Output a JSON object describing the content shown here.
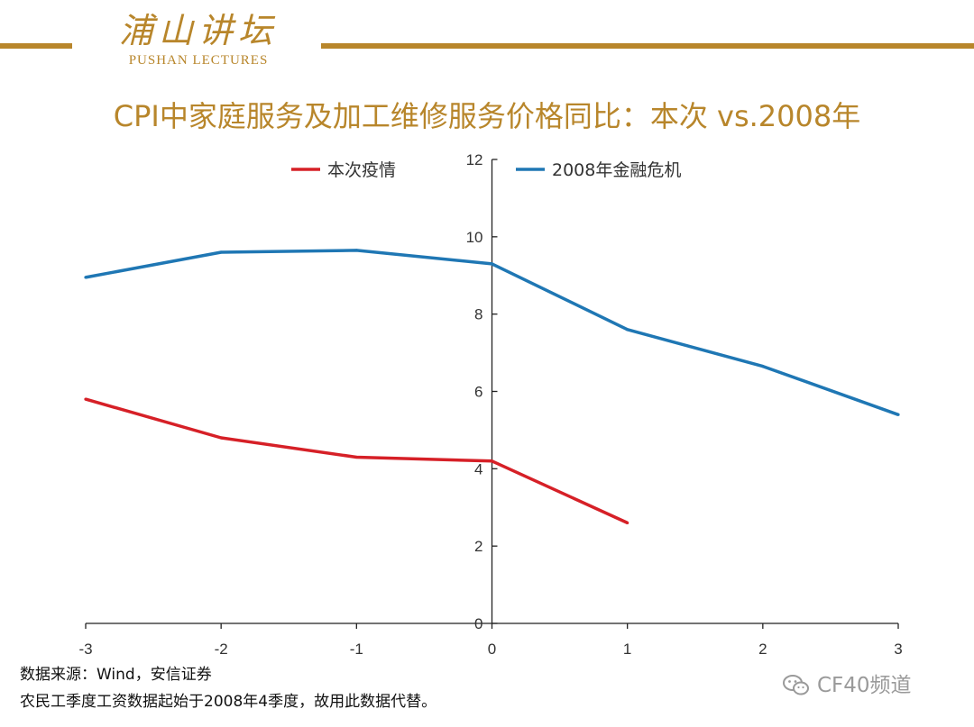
{
  "header": {
    "logo_cn": "浦山讲坛",
    "logo_en": "PUSHAN LECTURES"
  },
  "title": "CPI中家庭服务及加工维修服务价格同比：本次 vs.2008年",
  "chart_data": {
    "type": "line",
    "title": "CPI中家庭服务及加工维修服务价格同比：本次 vs.2008年",
    "xlabel": "",
    "ylabel": "",
    "x": [
      -3,
      -2,
      -1,
      0,
      1,
      2,
      3
    ],
    "x_ticks": [
      "-3",
      "-2",
      "-1",
      "0",
      "1",
      "2",
      "3"
    ],
    "y_ticks": [
      "0",
      "2",
      "4",
      "6",
      "8",
      "10",
      "12"
    ],
    "xlim": [
      -3,
      3
    ],
    "ylim": [
      0,
      12
    ],
    "grid": false,
    "legend_position": "top",
    "series": [
      {
        "name": "本次疫情",
        "color": "#d62027",
        "x": [
          -3,
          -2,
          -1,
          0,
          1
        ],
        "values": [
          5.8,
          4.8,
          4.3,
          4.2,
          2.6
        ]
      },
      {
        "name": "2008年金融危机",
        "color": "#1f77b4",
        "x": [
          -3,
          -2,
          -1,
          0,
          1,
          2,
          3
        ],
        "values": [
          8.95,
          9.6,
          9.65,
          9.3,
          7.6,
          6.65,
          5.4
        ]
      }
    ]
  },
  "footer": {
    "source": "数据来源：Wind，安信证券",
    "note": "农民工季度工资数据起始于2008年4季度，故用此数据代替。",
    "watermark": "CF40频道"
  },
  "colors": {
    "brand": "#b8862b",
    "series_red": "#d62027",
    "series_blue": "#1f77b4",
    "axis": "#222222"
  }
}
